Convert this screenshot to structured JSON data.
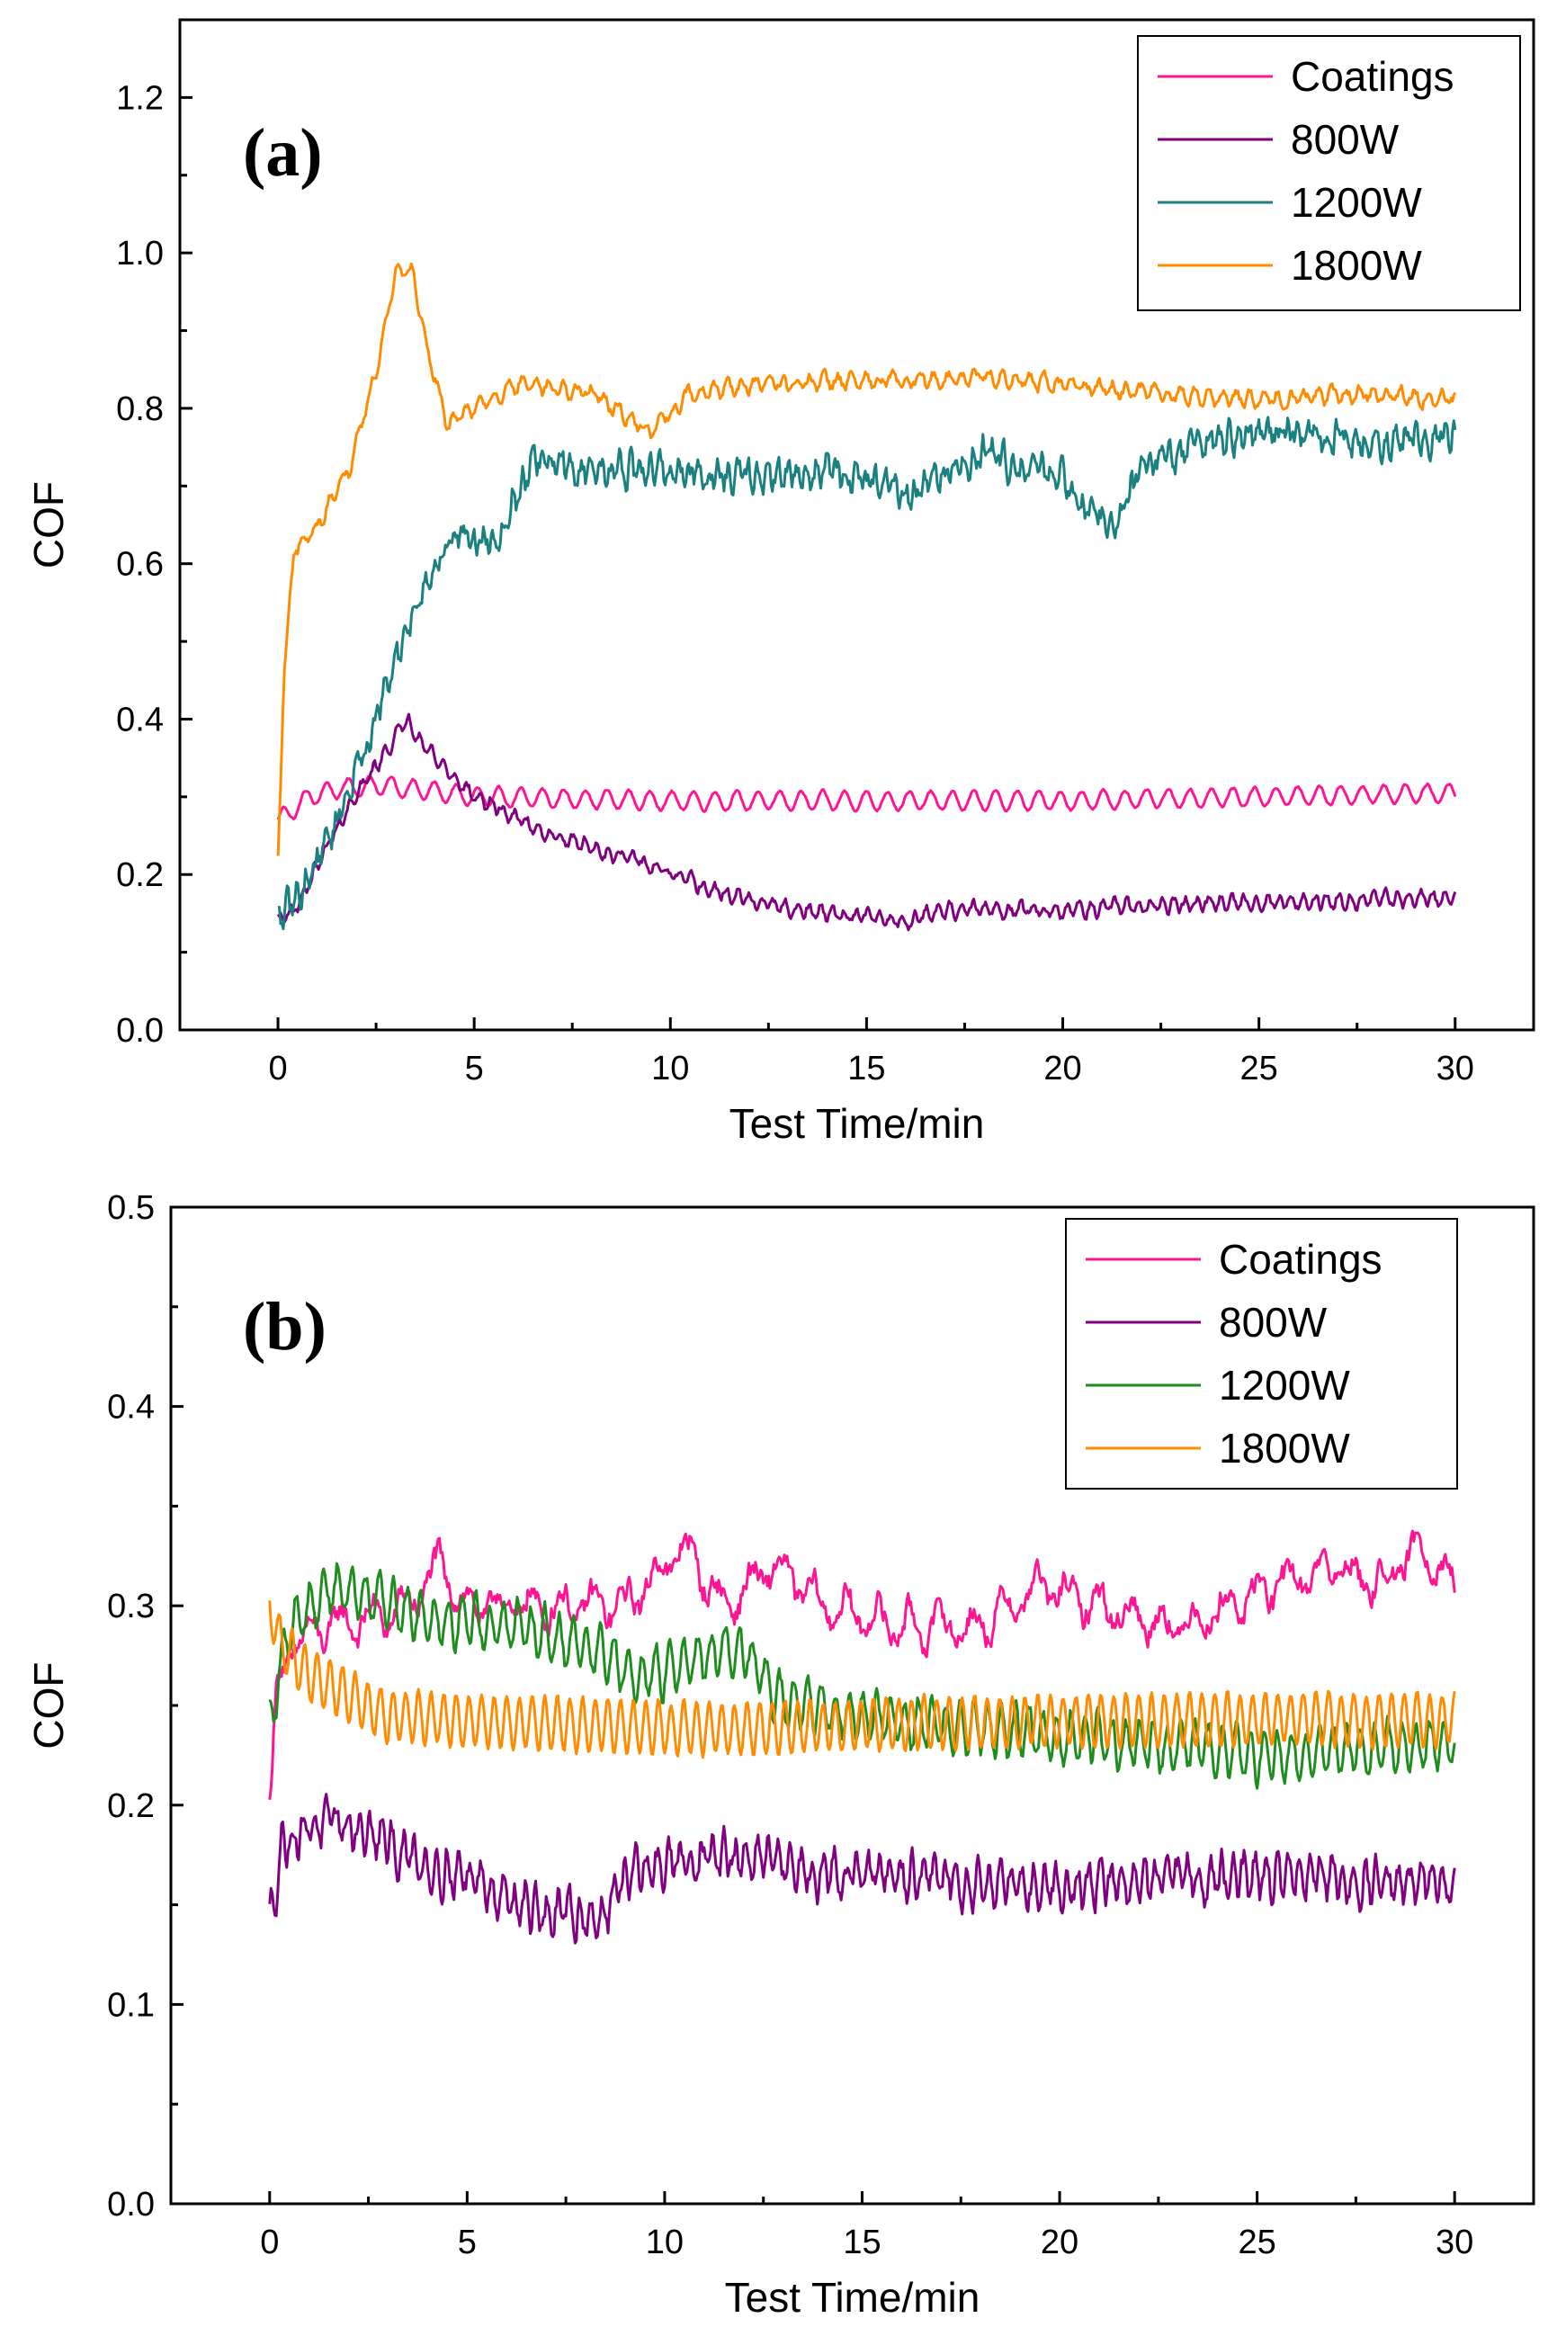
{
  "chart_data": [
    {
      "id": "a",
      "type": "line",
      "panel_label": "(a)",
      "xlabel": "Test Time/min",
      "ylabel": "COF",
      "xlim": [
        -2.5,
        32
      ],
      "ylim": [
        0,
        1.3
      ],
      "xticks": [
        0,
        5,
        10,
        15,
        20,
        25,
        30
      ],
      "yticks": [
        0.0,
        0.2,
        0.4,
        0.6,
        0.8,
        1.0,
        1.2
      ],
      "xtick_labels": [
        "0",
        "5",
        "10",
        "15",
        "20",
        "25",
        "30"
      ],
      "ytick_labels": [
        "0.0",
        "0.2",
        "0.4",
        "0.6",
        "0.8",
        "1.0",
        "1.2"
      ],
      "legend_position": "top-right",
      "series": [
        {
          "name": "Coatings",
          "color": "#ff1493",
          "osc": {
            "amp": 0.012,
            "period": 0.55,
            "noise": 0.003
          },
          "x": [
            0,
            0.3,
            0.8,
            1.5,
            2.5,
            3.5,
            5,
            10,
            20,
            30
          ],
          "y": [
            0.27,
            0.28,
            0.3,
            0.31,
            0.315,
            0.31,
            0.3,
            0.295,
            0.295,
            0.305
          ]
        },
        {
          "name": "800W",
          "color": "#800080",
          "osc": {
            "amp": 0.008,
            "period": 0.3,
            "noise": 0.01
          },
          "x": [
            0,
            0.5,
            1.5,
            2.5,
            3.3,
            4,
            5,
            7,
            9,
            11,
            13,
            15,
            16,
            17,
            20,
            25,
            30
          ],
          "y": [
            0.14,
            0.16,
            0.26,
            0.34,
            0.4,
            0.35,
            0.3,
            0.25,
            0.22,
            0.18,
            0.155,
            0.145,
            0.14,
            0.155,
            0.155,
            0.165,
            0.17
          ]
        },
        {
          "name": "1200W",
          "color": "#1a8080",
          "osc": {
            "amp": 0.012,
            "period": 0.25,
            "noise": 0.03
          },
          "x": [
            0,
            0.5,
            1.5,
            2.5,
            3.5,
            4.5,
            5.5,
            6.5,
            8,
            10,
            12,
            14,
            16,
            18,
            20,
            21.3,
            22,
            24,
            26,
            28,
            30
          ],
          "y": [
            0.14,
            0.17,
            0.27,
            0.4,
            0.55,
            0.64,
            0.63,
            0.73,
            0.72,
            0.72,
            0.71,
            0.72,
            0.69,
            0.74,
            0.71,
            0.64,
            0.73,
            0.76,
            0.77,
            0.75,
            0.77
          ]
        },
        {
          "name": "1800W",
          "color": "#ff8c00",
          "osc": {
            "amp": 0.008,
            "period": 0.35,
            "noise": 0.012
          },
          "x": [
            0,
            0.15,
            0.4,
            1,
            1.8,
            2.5,
            3.0,
            3.4,
            3.8,
            4.3,
            5,
            6,
            8,
            9.5,
            10.5,
            12,
            15,
            18,
            20,
            25,
            28,
            30
          ],
          "y": [
            0.22,
            0.45,
            0.61,
            0.65,
            0.72,
            0.85,
            0.98,
            0.98,
            0.88,
            0.78,
            0.8,
            0.83,
            0.82,
            0.77,
            0.82,
            0.83,
            0.835,
            0.84,
            0.83,
            0.81,
            0.82,
            0.81
          ]
        }
      ]
    },
    {
      "id": "b",
      "type": "line",
      "panel_label": "(b)",
      "xlabel": "Test Time/min",
      "ylabel": "COF",
      "xlim": [
        -2.5,
        32
      ],
      "ylim": [
        0,
        0.5
      ],
      "xticks": [
        0,
        5,
        10,
        15,
        20,
        25,
        30
      ],
      "yticks": [
        0.0,
        0.1,
        0.2,
        0.3,
        0.4,
        0.5
      ],
      "xtick_labels": [
        "0",
        "5",
        "10",
        "15",
        "20",
        "25",
        "30"
      ],
      "ytick_labels": [
        "0.0",
        "0.1",
        "0.2",
        "0.3",
        "0.4",
        "0.5"
      ],
      "legend_position": "top-right",
      "series": [
        {
          "name": "Coatings",
          "color": "#ff1493",
          "osc": {
            "amp": 0.008,
            "period": 0.8,
            "noise": 0.012
          },
          "x": [
            0,
            0.2,
            0.6,
            1.5,
            3,
            3.5,
            4.3,
            5,
            7,
            9,
            10.5,
            11.5,
            12.8,
            14,
            16,
            18,
            19.5,
            21,
            23,
            25.5,
            27,
            28,
            29.3,
            30
          ],
          "y": [
            0.2,
            0.26,
            0.28,
            0.29,
            0.295,
            0.3,
            0.32,
            0.3,
            0.3,
            0.3,
            0.33,
            0.3,
            0.32,
            0.3,
            0.29,
            0.29,
            0.31,
            0.3,
            0.29,
            0.31,
            0.32,
            0.31,
            0.33,
            0.31
          ]
        },
        {
          "name": "800W",
          "color": "#800080",
          "osc": {
            "amp": 0.009,
            "period": 0.28,
            "noise": 0.012
          },
          "x": [
            0,
            0.3,
            1,
            2,
            3,
            4,
            5,
            6,
            7,
            8.5,
            9,
            10,
            11,
            13,
            15,
            20,
            25,
            30
          ],
          "y": [
            0.14,
            0.18,
            0.19,
            0.19,
            0.18,
            0.17,
            0.165,
            0.155,
            0.145,
            0.145,
            0.165,
            0.17,
            0.175,
            0.17,
            0.165,
            0.16,
            0.165,
            0.16
          ]
        },
        {
          "name": "1200W",
          "color": "#1e8c1e",
          "osc": {
            "amp": 0.012,
            "period": 0.35,
            "noise": 0.008
          },
          "x": [
            0,
            0.5,
            1.5,
            2.5,
            4,
            6,
            8,
            9.5,
            11,
            12,
            13,
            15,
            17,
            20,
            25,
            30
          ],
          "y": [
            0.24,
            0.29,
            0.31,
            0.305,
            0.295,
            0.29,
            0.28,
            0.265,
            0.275,
            0.28,
            0.25,
            0.245,
            0.24,
            0.235,
            0.225,
            0.23
          ]
        },
        {
          "name": "1800W",
          "color": "#ff8c00",
          "osc": {
            "amp": 0.013,
            "period": 0.32,
            "noise": 0.003
          },
          "x": [
            0,
            0.3,
            1,
            2,
            3,
            5,
            8,
            11,
            15,
            20,
            25,
            30
          ],
          "y": [
            0.3,
            0.28,
            0.265,
            0.255,
            0.245,
            0.242,
            0.24,
            0.238,
            0.24,
            0.242,
            0.243,
            0.243
          ]
        }
      ]
    }
  ]
}
